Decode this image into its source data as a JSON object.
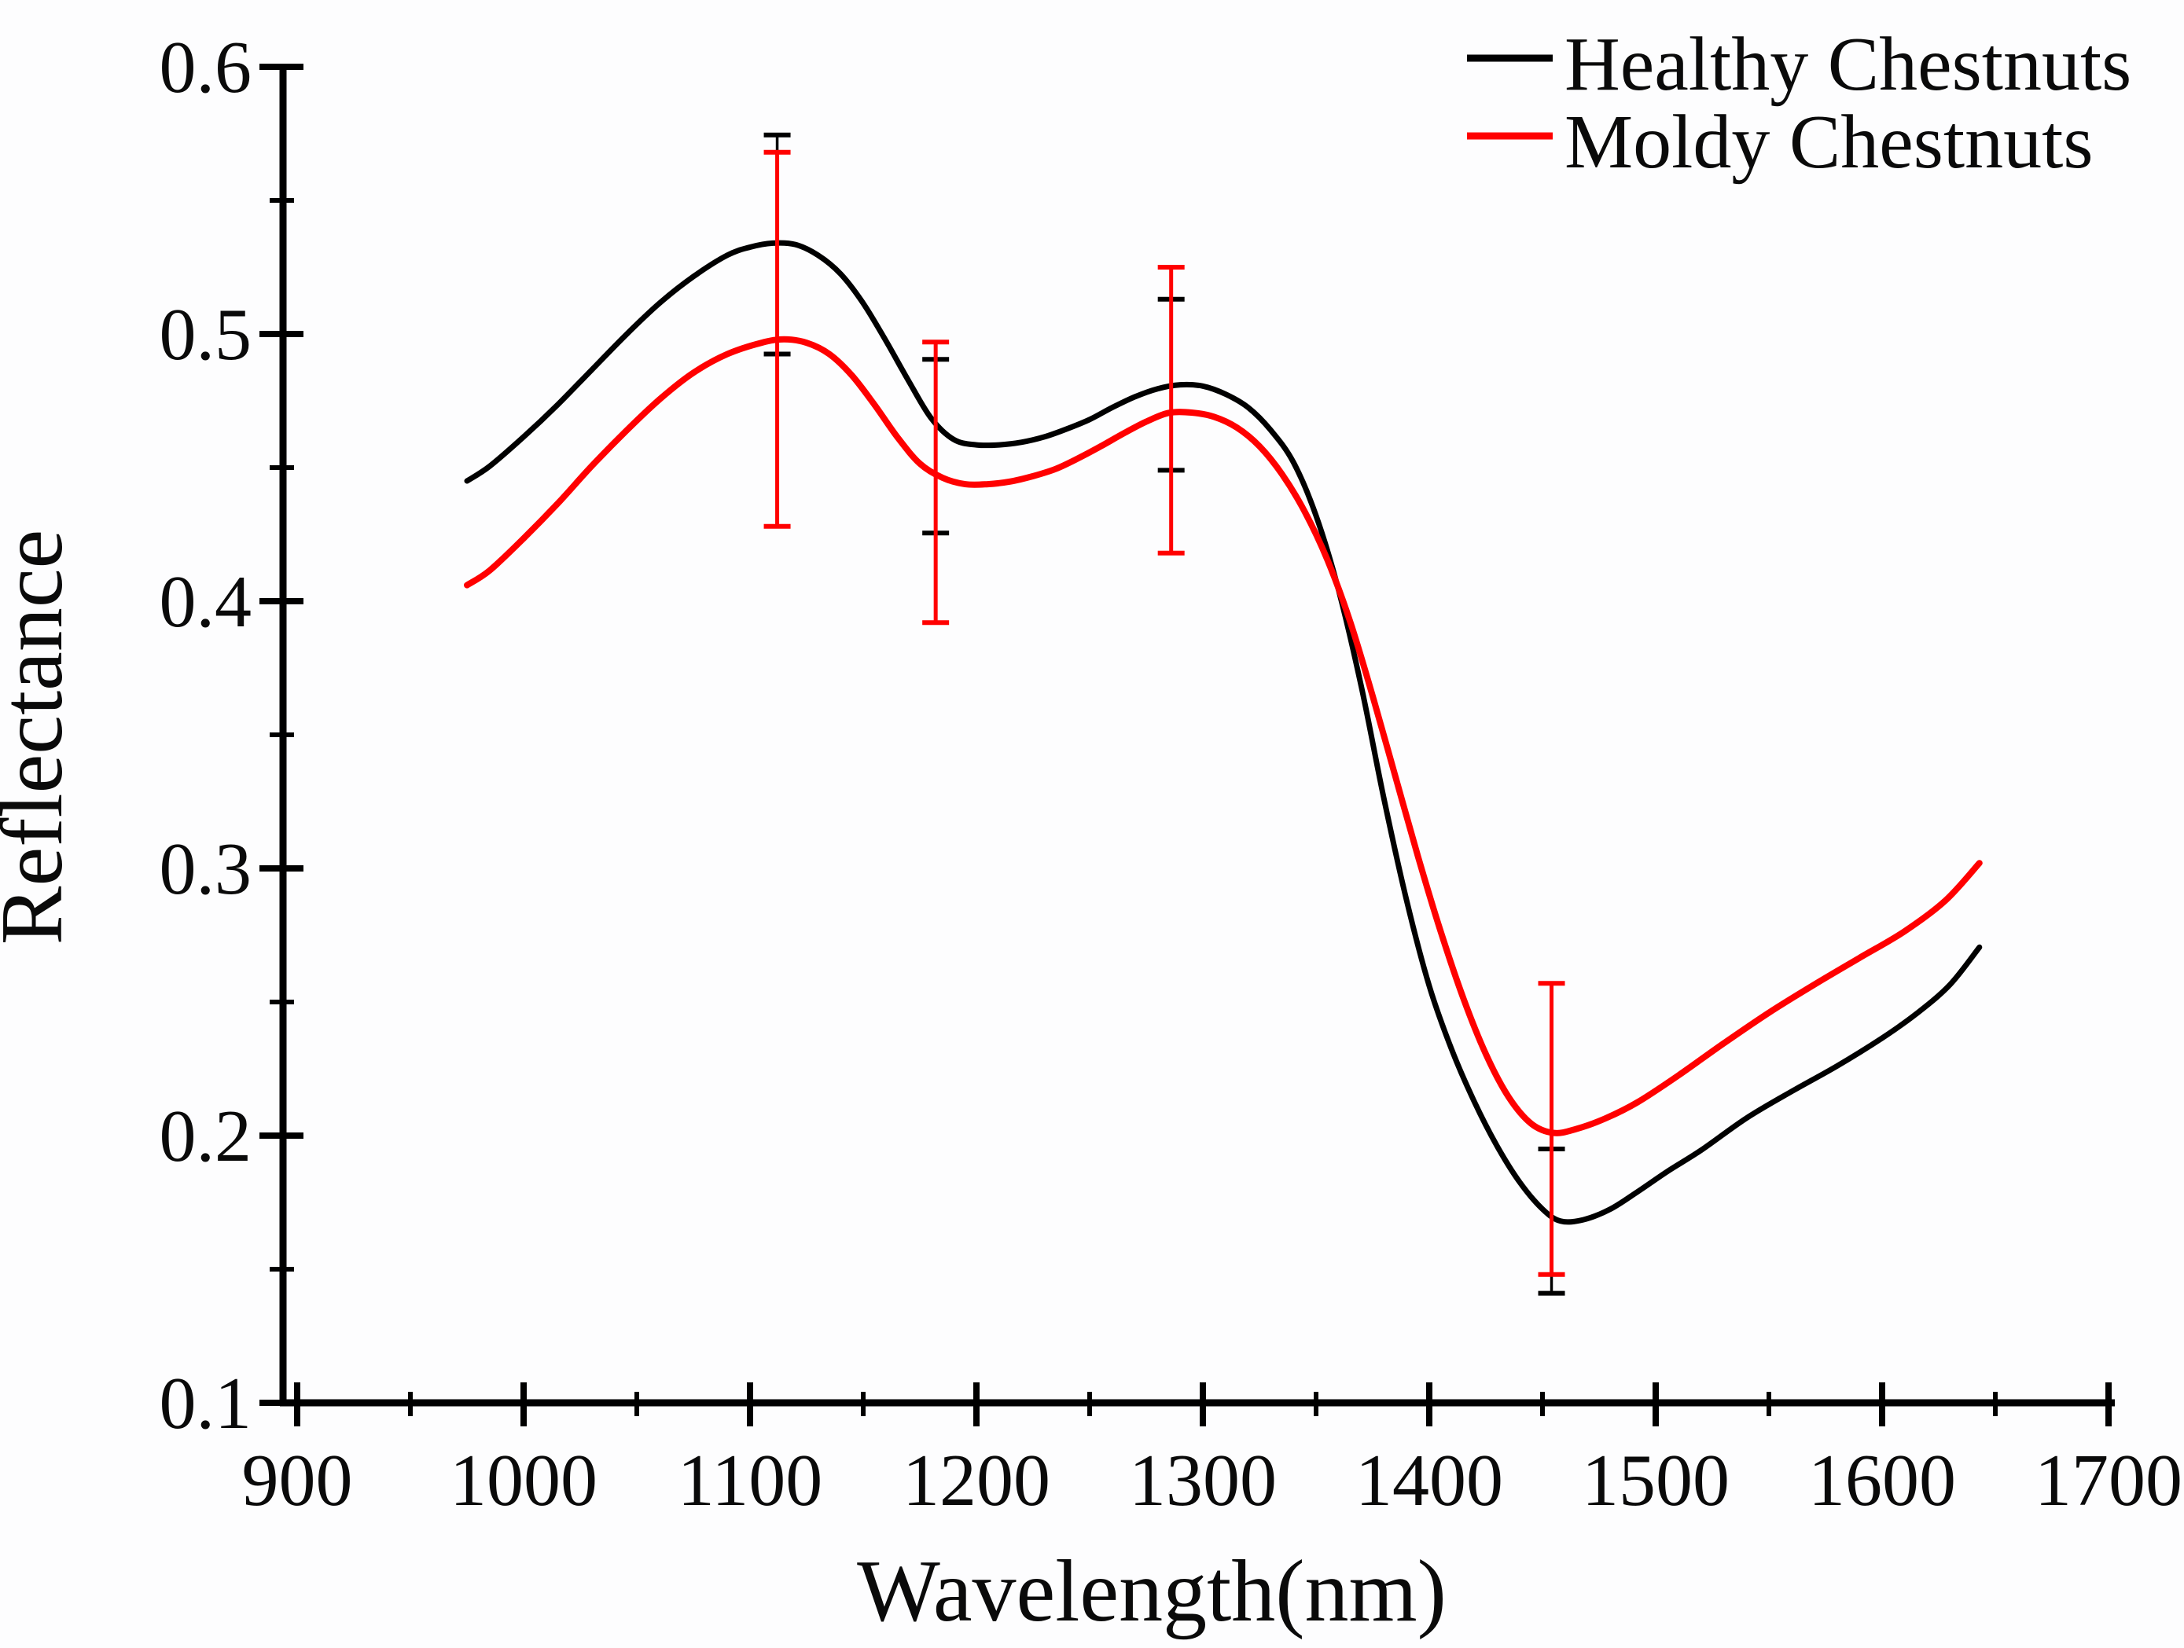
{
  "chart_data": {
    "type": "line",
    "title": "",
    "xlabel": "Wavelength(nm)",
    "ylabel": "Reflectance",
    "x_axis": {
      "min": 894,
      "max": 1703,
      "major_ticks": [
        900,
        1000,
        1100,
        1200,
        1300,
        1400,
        1500,
        1600,
        1700
      ],
      "tick_labels": [
        "900",
        "1000",
        "1100",
        "1200",
        "1300",
        "1400",
        "1500",
        "1600",
        "1700"
      ],
      "minor_ticks": [
        950,
        1050,
        1150,
        1250,
        1350,
        1450,
        1550,
        1650
      ]
    },
    "y_axis": {
      "min": 0.1,
      "max": 0.6,
      "major_ticks": [
        0.6,
        0.5,
        0.4,
        0.3,
        0.2,
        0.1
      ],
      "tick_labels": [
        "0.6",
        "0.5",
        "0.4",
        "0.3",
        "0.2",
        "0.1"
      ],
      "minor_ticks": [
        0.55,
        0.45,
        0.35,
        0.25,
        0.15
      ]
    },
    "grid": false,
    "legend": {
      "position": "top-right",
      "entries": [
        {
          "label": "Healthy Chestnuts",
          "color": "#000000"
        },
        {
          "label": "Moldy Chestnuts",
          "color": "#ff0000"
        }
      ]
    },
    "series": [
      {
        "name": "Healthy Chestnuts",
        "color": "#000000",
        "points": [
          [
            975,
            0.445
          ],
          [
            985,
            0.4505
          ],
          [
            1000,
            0.4615
          ],
          [
            1015,
            0.4735
          ],
          [
            1030,
            0.4865
          ],
          [
            1045,
            0.4995
          ],
          [
            1060,
            0.5115
          ],
          [
            1075,
            0.5215
          ],
          [
            1090,
            0.5295
          ],
          [
            1100,
            0.5325
          ],
          [
            1110,
            0.534
          ],
          [
            1120,
            0.5335
          ],
          [
            1130,
            0.5295
          ],
          [
            1140,
            0.5225
          ],
          [
            1150,
            0.5115
          ],
          [
            1160,
            0.4975
          ],
          [
            1170,
            0.4825
          ],
          [
            1180,
            0.4685
          ],
          [
            1190,
            0.4605
          ],
          [
            1200,
            0.4585
          ],
          [
            1210,
            0.4585
          ],
          [
            1220,
            0.4595
          ],
          [
            1230,
            0.4615
          ],
          [
            1240,
            0.4645
          ],
          [
            1250,
            0.468
          ],
          [
            1260,
            0.4725
          ],
          [
            1270,
            0.4765
          ],
          [
            1280,
            0.4795
          ],
          [
            1290,
            0.481
          ],
          [
            1300,
            0.4805
          ],
          [
            1310,
            0.4775
          ],
          [
            1320,
            0.4725
          ],
          [
            1330,
            0.464
          ],
          [
            1340,
            0.452
          ],
          [
            1350,
            0.432
          ],
          [
            1360,
            0.404
          ],
          [
            1370,
            0.368
          ],
          [
            1380,
            0.326
          ],
          [
            1390,
            0.288
          ],
          [
            1400,
            0.256
          ],
          [
            1410,
            0.232
          ],
          [
            1420,
            0.2125
          ],
          [
            1430,
            0.196
          ],
          [
            1440,
            0.1825
          ],
          [
            1450,
            0.1725
          ],
          [
            1458,
            0.168
          ],
          [
            1468,
            0.1685
          ],
          [
            1480,
            0.1725
          ],
          [
            1492,
            0.179
          ],
          [
            1505,
            0.1865
          ],
          [
            1520,
            0.1945
          ],
          [
            1540,
            0.2065
          ],
          [
            1560,
            0.2165
          ],
          [
            1580,
            0.226
          ],
          [
            1600,
            0.2365
          ],
          [
            1615,
            0.2455
          ],
          [
            1630,
            0.2565
          ],
          [
            1643,
            0.2705
          ]
        ]
      },
      {
        "name": "Moldy Chestnuts",
        "color": "#ff0000",
        "points": [
          [
            975,
            0.406
          ],
          [
            985,
            0.4115
          ],
          [
            1000,
            0.4235
          ],
          [
            1015,
            0.4365
          ],
          [
            1030,
            0.4505
          ],
          [
            1045,
            0.4635
          ],
          [
            1060,
            0.4755
          ],
          [
            1075,
            0.4855
          ],
          [
            1090,
            0.4925
          ],
          [
            1105,
            0.4967
          ],
          [
            1115,
            0.498
          ],
          [
            1125,
            0.4967
          ],
          [
            1135,
            0.4925
          ],
          [
            1145,
            0.4845
          ],
          [
            1155,
            0.4735
          ],
          [
            1165,
            0.4615
          ],
          [
            1175,
            0.4515
          ],
          [
            1185,
            0.4462
          ],
          [
            1195,
            0.4438
          ],
          [
            1205,
            0.4438
          ],
          [
            1215,
            0.4448
          ],
          [
            1225,
            0.4468
          ],
          [
            1235,
            0.4495
          ],
          [
            1245,
            0.4535
          ],
          [
            1255,
            0.458
          ],
          [
            1265,
            0.4628
          ],
          [
            1275,
            0.4672
          ],
          [
            1285,
            0.4705
          ],
          [
            1295,
            0.4706
          ],
          [
            1305,
            0.469
          ],
          [
            1315,
            0.465
          ],
          [
            1325,
            0.458
          ],
          [
            1335,
            0.4475
          ],
          [
            1345,
            0.4335
          ],
          [
            1355,
            0.4155
          ],
          [
            1365,
            0.3925
          ],
          [
            1375,
            0.3645
          ],
          [
            1385,
            0.3345
          ],
          [
            1395,
            0.3045
          ],
          [
            1405,
            0.2765
          ],
          [
            1415,
            0.2515
          ],
          [
            1425,
            0.2305
          ],
          [
            1435,
            0.2145
          ],
          [
            1445,
            0.2045
          ],
          [
            1455,
            0.201
          ],
          [
            1465,
            0.2025
          ],
          [
            1478,
            0.2065
          ],
          [
            1492,
            0.2125
          ],
          [
            1510,
            0.2225
          ],
          [
            1530,
            0.2345
          ],
          [
            1550,
            0.246
          ],
          [
            1570,
            0.2565
          ],
          [
            1590,
            0.2665
          ],
          [
            1610,
            0.2765
          ],
          [
            1628,
            0.288
          ],
          [
            1643,
            0.302
          ]
        ]
      }
    ],
    "error_bars": [
      {
        "series": "Healthy Chestnuts",
        "color": "#000000",
        "points": [
          {
            "x": 1112,
            "y": 0.5335,
            "err": 0.041
          },
          {
            "x": 1182,
            "y": 0.458,
            "err": 0.0325
          },
          {
            "x": 1286,
            "y": 0.481,
            "err": 0.032
          },
          {
            "x": 1454,
            "y": 0.168,
            "err": 0.027
          }
        ]
      },
      {
        "series": "Moldy Chestnuts",
        "color": "#ff0000",
        "points": [
          {
            "x": 1112,
            "y": 0.498,
            "err": 0.07
          },
          {
            "x": 1182,
            "y": 0.4445,
            "err": 0.0525
          },
          {
            "x": 1286,
            "y": 0.4715,
            "err": 0.0535
          },
          {
            "x": 1454,
            "y": 0.2025,
            "err": 0.0545
          }
        ]
      }
    ]
  }
}
